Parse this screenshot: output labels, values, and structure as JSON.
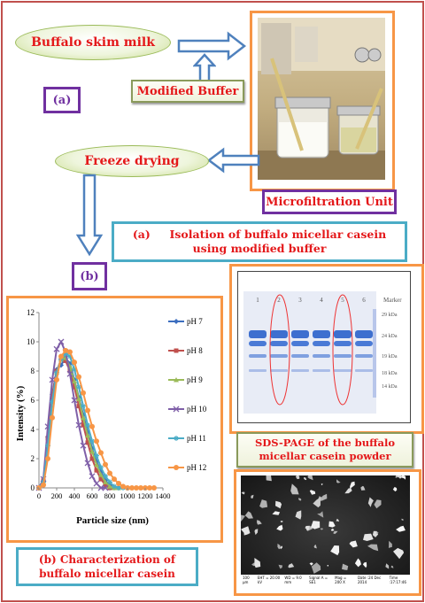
{
  "steps": {
    "skim_milk": "Buffalo skim milk",
    "modified_buffer": "Modified Buffer",
    "freeze_drying": "Freeze drying",
    "microfiltration": "Microfiltration Unit",
    "label_a": "(a)",
    "label_b": "(b)"
  },
  "captions": {
    "a_label": "(a)",
    "a_text": "Isolation of buffalo micellar casein using modified buffer",
    "b_text": "(b) Characterization of buffalo micellar casein",
    "sds_text": "SDS-PAGE of the buffalo micellar casein powder"
  },
  "gel": {
    "lanes": [
      "1",
      "2",
      "3",
      "4",
      "5",
      "6"
    ],
    "marker": "Marker",
    "markers": [
      "29 kDa",
      "24 kDa",
      "19 kDa",
      "18 kDa",
      "14 kDa"
    ]
  },
  "sem": {
    "footer": [
      "100 μm",
      "EHT = 20.00 kV",
      "WD = 9.0 mm",
      "Signal A = SE1",
      "Mag = 200 X",
      "Date :24 Dec 2014",
      "Time :17:17:46"
    ]
  },
  "chart_data": {
    "type": "line",
    "xlabel": "Particle size (nm)",
    "ylabel": "Intensity (%)",
    "xlim": [
      0,
      1400
    ],
    "ylim": [
      0,
      12
    ],
    "xticks": [
      "0",
      "200",
      "400",
      "600",
      "800",
      "1000",
      "1200",
      "1400"
    ],
    "yticks": [
      "0",
      "2",
      "4",
      "6",
      "8",
      "10",
      "12"
    ],
    "legend_position": "right",
    "series": [
      {
        "name": "pH 7",
        "color": "#3c6ebf",
        "marker": "diamond",
        "x": [
          0,
          50,
          100,
          150,
          200,
          250,
          300,
          350,
          400,
          450,
          500,
          550,
          600,
          650,
          700,
          750,
          800,
          850,
          900
        ],
        "y": [
          0,
          0.5,
          3.5,
          6.4,
          8.1,
          8.4,
          8.9,
          8.5,
          7.4,
          6.2,
          5.0,
          3.8,
          2.7,
          1.8,
          1.1,
          0.5,
          0.2,
          0,
          0
        ]
      },
      {
        "name": "pH 8",
        "color": "#c0504d",
        "marker": "square",
        "x": [
          0,
          50,
          100,
          150,
          200,
          250,
          300,
          350,
          400,
          450,
          500,
          550,
          600,
          650,
          700,
          750,
          800,
          850
        ],
        "y": [
          0,
          0.5,
          3.4,
          6.3,
          8.0,
          8.8,
          8.7,
          8.0,
          6.9,
          5.6,
          4.3,
          3.1,
          2.0,
          1.2,
          0.6,
          0.2,
          0,
          0
        ]
      },
      {
        "name": "pH 9",
        "color": "#9bbb59",
        "marker": "triangle",
        "x": [
          0,
          50,
          100,
          150,
          200,
          250,
          300,
          350,
          400,
          450,
          500,
          550,
          600,
          650,
          700,
          750,
          800,
          850,
          900
        ],
        "y": [
          0,
          0.4,
          3.0,
          5.9,
          7.9,
          8.8,
          8.9,
          8.3,
          7.3,
          6.1,
          4.8,
          3.6,
          2.5,
          1.6,
          0.9,
          0.4,
          0.1,
          0,
          0
        ]
      },
      {
        "name": "pH 10",
        "color": "#7f5fa8",
        "marker": "x",
        "x": [
          0,
          50,
          100,
          150,
          200,
          250,
          300,
          350,
          400,
          450,
          500,
          550,
          600,
          650,
          700,
          750
        ],
        "y": [
          0,
          0.6,
          4.2,
          7.4,
          9.5,
          10.0,
          9.3,
          7.8,
          6.0,
          4.3,
          2.9,
          1.7,
          0.8,
          0.3,
          0,
          0
        ]
      },
      {
        "name": "pH 11",
        "color": "#4bacc6",
        "marker": "star",
        "x": [
          0,
          50,
          100,
          150,
          200,
          250,
          300,
          350,
          400,
          450,
          500,
          550,
          600,
          650,
          700,
          750,
          800,
          850,
          900,
          950,
          1000
        ],
        "y": [
          0,
          0.4,
          2.9,
          5.9,
          7.9,
          8.8,
          9.2,
          9.0,
          8.1,
          6.9,
          5.6,
          4.3,
          3.2,
          2.2,
          1.4,
          0.8,
          0.4,
          0.1,
          0,
          0,
          0
        ]
      },
      {
        "name": "pH 12",
        "color": "#f79646",
        "marker": "circle",
        "x": [
          0,
          50,
          100,
          150,
          200,
          250,
          300,
          350,
          400,
          450,
          500,
          550,
          600,
          650,
          700,
          750,
          800,
          850,
          900,
          950,
          1000,
          1050,
          1100,
          1150,
          1200,
          1250,
          1300
        ],
        "y": [
          0,
          0.2,
          2.0,
          4.8,
          7.4,
          9.0,
          9.4,
          9.3,
          8.6,
          7.6,
          6.5,
          5.3,
          4.2,
          3.2,
          2.4,
          1.6,
          1.0,
          0.6,
          0.3,
          0.1,
          0,
          0,
          0,
          0,
          0,
          0,
          0
        ]
      }
    ]
  }
}
